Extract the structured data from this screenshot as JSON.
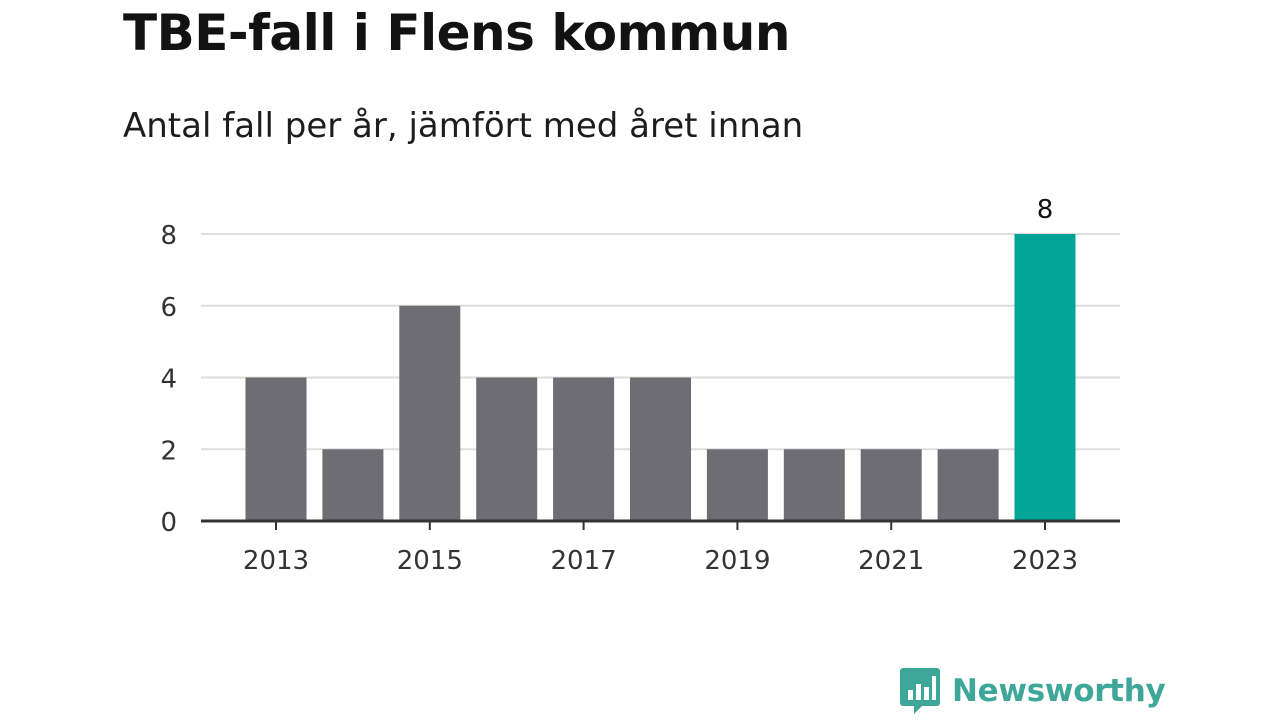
{
  "title": "TBE-fall i Flens kommun",
  "subtitle": "Antal fall per år, jämfört med året innan",
  "brand": {
    "name": "Newsworthy",
    "icon": "bar-chart-speech-bubble-icon",
    "color": "#3ea79a"
  },
  "chart_data": {
    "type": "bar",
    "title": "TBE-fall i Flens kommun",
    "subtitle": "Antal fall per år, jämfört med året innan",
    "categories": [
      "2013",
      "2014",
      "2015",
      "2016",
      "2017",
      "2018",
      "2019",
      "2020",
      "2021",
      "2022",
      "2023"
    ],
    "values": [
      4,
      2,
      6,
      4,
      4,
      4,
      2,
      2,
      2,
      2,
      8
    ],
    "x_tick_labels": [
      "2013",
      "2015",
      "2017",
      "2019",
      "2021",
      "2023"
    ],
    "y_ticks": [
      0,
      2,
      4,
      6,
      8
    ],
    "ylim": [
      0,
      8
    ],
    "xlabel": "",
    "ylabel": "",
    "grid": true,
    "highlight_category": "2023",
    "data_labels": [
      {
        "category": "2023",
        "text": "8"
      }
    ],
    "colors": {
      "bar": "#6e6d74",
      "highlight": "#00a598",
      "grid": "#dddddd",
      "axis": "#333333"
    }
  }
}
